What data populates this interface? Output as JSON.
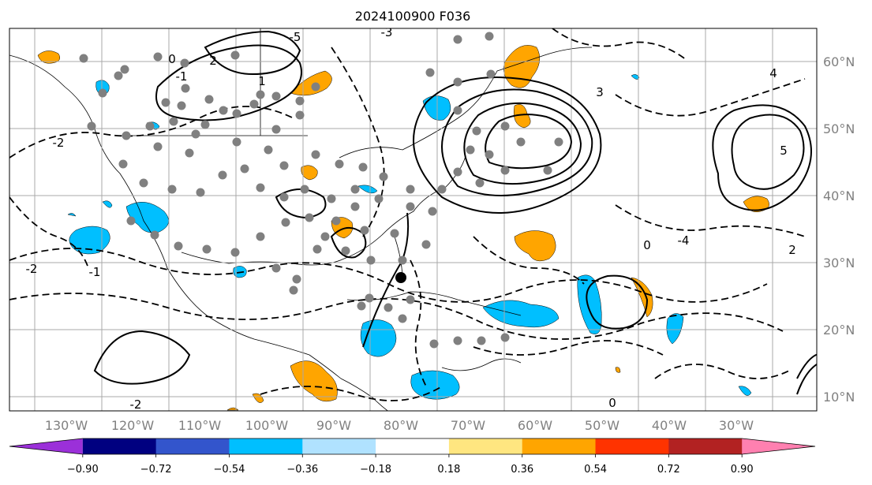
{
  "title": "2024100900 F036",
  "map": {
    "longitude_labels": [
      "130°W",
      "120°W",
      "110°W",
      "100°W",
      "90°W",
      "80°W",
      "70°W",
      "60°W",
      "50°W",
      "40°W",
      "30°W"
    ],
    "latitude_labels": [
      "60°N",
      "50°N",
      "40°N",
      "30°N",
      "20°N",
      "10°N"
    ],
    "gridlines": true,
    "extent": {
      "lon_min": -138,
      "lon_max": -18,
      "lat_min": 8,
      "lat_max": 65
    },
    "contour_labels": [
      "0",
      "-1",
      "-2",
      "-3",
      "-5",
      "1",
      "2",
      "3",
      "4",
      "5",
      "-4",
      "0",
      "-2",
      "-1",
      "-2",
      "0",
      "2"
    ],
    "station_marker_color": "#808080",
    "contour_color": "#000000"
  },
  "colorbar": {
    "ticks": [
      "−0.90",
      "−0.72",
      "−0.54",
      "−0.36",
      "−0.18",
      "0.18",
      "0.36",
      "0.54",
      "0.72",
      "0.90"
    ],
    "colors": [
      "#9b30d9",
      "#000080",
      "#3355cc",
      "#00bfff",
      "#b0e2ff",
      "#ffffff",
      "#ffe680",
      "#ffa500",
      "#ff3300",
      "#b22222",
      "#ff80b0"
    ],
    "extend": "both"
  }
}
